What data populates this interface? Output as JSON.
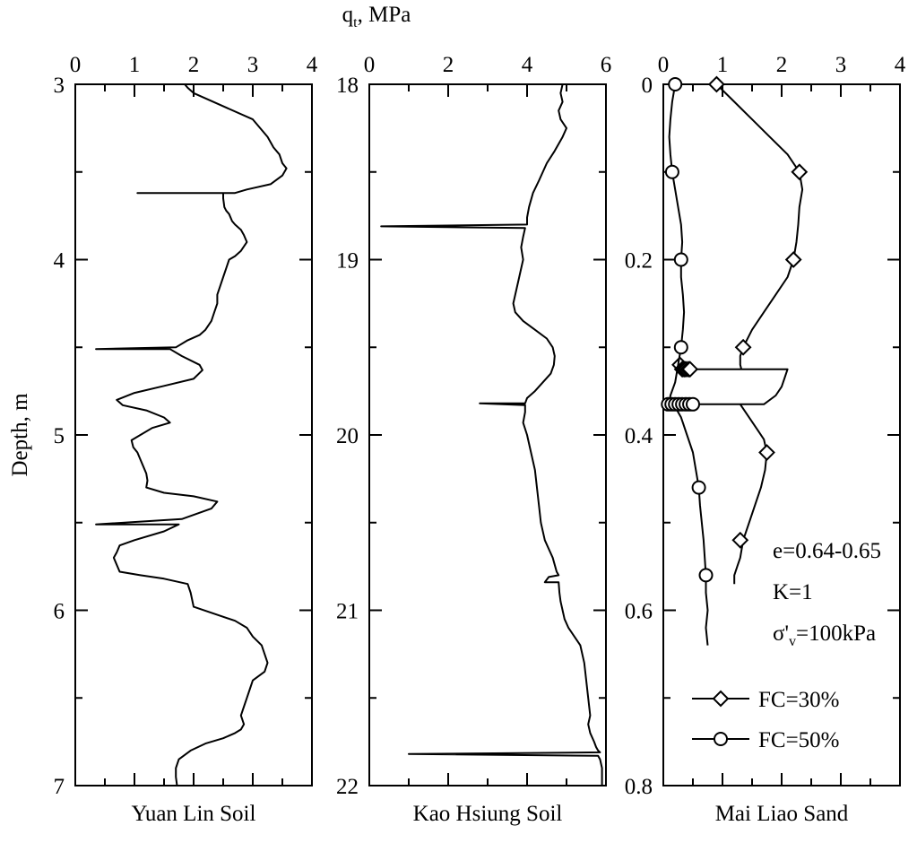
{
  "chart_data": {
    "type": "line",
    "top_label": {
      "main": "q",
      "sub": "t",
      "rest": ", MPa"
    },
    "ylabel": "Depth, m",
    "panels": [
      {
        "id": "yuan-lin",
        "title": "Yuan Lin Soil",
        "xlim": [
          0,
          4
        ],
        "ylim": [
          3,
          7
        ],
        "x_ticks": [
          "0",
          "1",
          "2",
          "3",
          "4"
        ],
        "y_ticks": [
          "3",
          "4",
          "5",
          "6",
          "7"
        ],
        "series": [
          {
            "x": [
              1.85,
              1.9,
              2.0,
              3.0,
              3.25,
              3.3,
              3.35,
              3.45,
              3.5,
              3.57,
              3.5,
              3.3,
              2.9,
              2.7,
              1.05,
              2.5,
              2.5,
              2.52,
              2.55,
              2.6,
              2.65,
              2.7,
              2.8,
              2.85,
              2.9,
              2.8,
              2.7,
              2.6,
              2.55,
              2.5,
              2.45,
              2.4,
              2.4,
              2.35,
              2.3,
              2.2,
              2.1,
              1.9,
              1.7,
              0.35,
              1.6,
              1.8,
              2.1,
              2.15,
              2.0,
              1.5,
              1.0,
              0.7,
              0.8,
              1.2,
              1.5,
              1.6,
              1.3,
              1.1,
              0.95,
              0.98,
              1.05,
              1.1,
              1.15,
              1.2,
              1.22,
              1.2,
              1.5,
              2.0,
              2.4,
              2.3,
              1.8,
              0.35,
              1.75,
              1.5,
              1.0,
              0.75,
              0.7,
              0.65,
              0.75,
              1.1,
              1.5,
              1.9,
              1.95,
              2.0,
              2.7,
              2.9,
              3.0,
              3.15,
              3.25,
              3.2,
              3.0,
              2.95,
              2.9,
              2.85,
              2.8,
              2.85,
              2.8,
              2.7,
              2.5,
              2.2,
              1.95,
              1.75,
              1.7,
              1.7,
              1.72
            ],
            "y": [
              3.0,
              3.02,
              3.05,
              3.2,
              3.3,
              3.33,
              3.36,
              3.4,
              3.45,
              3.48,
              3.52,
              3.57,
              3.6,
              3.62,
              3.62,
              3.62,
              3.65,
              3.7,
              3.72,
              3.74,
              3.78,
              3.8,
              3.83,
              3.86,
              3.9,
              3.95,
              3.98,
              4.0,
              4.05,
              4.1,
              4.15,
              4.2,
              4.25,
              4.3,
              4.35,
              4.4,
              4.43,
              4.46,
              4.5,
              4.51,
              4.51,
              4.55,
              4.6,
              4.63,
              4.68,
              4.72,
              4.76,
              4.8,
              4.83,
              4.86,
              4.9,
              4.93,
              4.96,
              5.0,
              5.03,
              5.07,
              5.1,
              5.14,
              5.18,
              5.22,
              5.26,
              5.3,
              5.33,
              5.35,
              5.38,
              5.42,
              5.48,
              5.51,
              5.51,
              5.55,
              5.6,
              5.63,
              5.67,
              5.7,
              5.78,
              5.8,
              5.82,
              5.85,
              5.9,
              5.98,
              6.06,
              6.1,
              6.15,
              6.2,
              6.3,
              6.35,
              6.4,
              6.45,
              6.5,
              6.55,
              6.6,
              6.65,
              6.68,
              6.7,
              6.73,
              6.76,
              6.8,
              6.85,
              6.9,
              6.95,
              7.0
            ]
          }
        ]
      },
      {
        "id": "kao-hsiung",
        "title": "Kao Hsiung Soil",
        "xlim": [
          0,
          6
        ],
        "ylim": [
          18,
          22
        ],
        "x_ticks": [
          "0",
          "2",
          "4",
          "6"
        ],
        "y_ticks": [
          "18",
          "19",
          "20",
          "21",
          "22"
        ],
        "series": [
          {
            "x": [
              4.9,
              4.85,
              4.9,
              4.8,
              4.85,
              5.0,
              4.9,
              4.7,
              4.5,
              4.3,
              4.15,
              4.05,
              4.0,
              4.0,
              0.3,
              3.95,
              3.9,
              3.85,
              3.9,
              3.8,
              3.7,
              3.65,
              3.7,
              3.9,
              4.2,
              4.5,
              4.65,
              4.7,
              4.68,
              4.6,
              4.4,
              4.2,
              4.0,
              3.95,
              2.8,
              3.95,
              3.95,
              3.9,
              4.0,
              4.1,
              4.2,
              4.25,
              4.3,
              4.35,
              4.45,
              4.55,
              4.65,
              4.7,
              4.75,
              4.8,
              4.55,
              4.45,
              4.8,
              4.82,
              4.85,
              4.9,
              4.95,
              5.05,
              5.2,
              5.35,
              5.45,
              5.5,
              5.55,
              5.6,
              5.55,
              5.6,
              5.7,
              5.75,
              5.8,
              5.85,
              1.0,
              5.8,
              5.85,
              5.9,
              5.9
            ],
            "y": [
              18.0,
              18.05,
              18.1,
              18.15,
              18.2,
              18.25,
              18.3,
              18.38,
              18.45,
              18.55,
              18.62,
              18.7,
              18.76,
              18.8,
              18.81,
              18.82,
              18.87,
              18.93,
              19.0,
              19.1,
              19.2,
              19.25,
              19.3,
              19.35,
              19.4,
              19.45,
              19.5,
              19.55,
              19.6,
              19.65,
              19.7,
              19.75,
              19.79,
              19.82,
              19.82,
              19.83,
              19.87,
              19.93,
              20.0,
              20.1,
              20.2,
              20.3,
              20.4,
              20.5,
              20.6,
              20.65,
              20.7,
              20.74,
              20.78,
              20.8,
              20.81,
              20.84,
              20.84,
              20.9,
              20.95,
              21.0,
              21.05,
              21.1,
              21.15,
              21.2,
              21.3,
              21.4,
              21.5,
              21.6,
              21.65,
              21.7,
              21.75,
              21.78,
              21.8,
              21.81,
              21.82,
              21.83,
              21.85,
              21.9,
              22.0
            ]
          }
        ]
      },
      {
        "id": "mai-liao",
        "title": "Mai Liao Sand",
        "xlim": [
          0,
          4
        ],
        "ylim": [
          0,
          0.8
        ],
        "x_ticks": [
          "0",
          "1",
          "2",
          "3",
          "4"
        ],
        "y_ticks": [
          "0",
          "0.2",
          "0.4",
          "0.6",
          "0.8"
        ],
        "series": [
          {
            "name": "FC=30%",
            "marker": "diamond",
            "x": [
              0.9,
              1.2,
              1.5,
              1.8,
              2.1,
              2.3,
              2.35,
              2.3,
              2.28,
              2.25,
              2.2,
              2.1,
              1.9,
              1.7,
              1.5,
              1.35,
              1.3,
              1.3,
              1.32,
              1.35,
              0.3,
              0.35,
              0.4,
              2.1,
              2.05,
              2.0,
              1.9,
              1.7,
              0.5,
              0.55,
              0.6,
              1.3,
              1.4,
              1.5,
              1.6,
              1.7,
              1.75,
              1.72,
              1.65,
              1.55,
              1.45,
              1.35,
              1.3,
              1.25,
              1.2,
              1.2
            ],
            "y": [
              0.0,
              0.02,
              0.04,
              0.06,
              0.08,
              0.1,
              0.12,
              0.14,
              0.16,
              0.18,
              0.2,
              0.22,
              0.24,
              0.26,
              0.28,
              0.3,
              0.31,
              0.32,
              0.325,
              0.325,
              0.325,
              0.325,
              0.325,
              0.325,
              0.335,
              0.345,
              0.355,
              0.365,
              0.365,
              0.365,
              0.365,
              0.365,
              0.375,
              0.385,
              0.395,
              0.405,
              0.42,
              0.44,
              0.46,
              0.48,
              0.5,
              0.52,
              0.54,
              0.55,
              0.56,
              0.57
            ],
            "marker_y": [
              0.0,
              0.1,
              0.2,
              0.3,
              0.32,
              0.325,
              0.325,
              0.325,
              0.325,
              0.325,
              0.42,
              0.52
            ],
            "marker_x": [
              0.9,
              2.3,
              2.2,
              1.35,
              0.28,
              0.32,
              0.35,
              0.38,
              0.42,
              0.45,
              1.75,
              1.3
            ]
          },
          {
            "name": "FC=50%",
            "marker": "circle",
            "x": [
              0.2,
              0.15,
              0.12,
              0.1,
              0.12,
              0.15,
              0.2,
              0.25,
              0.3,
              0.32,
              0.3,
              0.3,
              0.33,
              0.35,
              0.33,
              0.3,
              0.25,
              0.2,
              0.12,
              0.1,
              0.12,
              0.2,
              0.3,
              0.4,
              0.5,
              0.55,
              0.6,
              0.62,
              0.65,
              0.68,
              0.7,
              0.72,
              0.72,
              0.75,
              0.72,
              0.75
            ],
            "y": [
              0.0,
              0.02,
              0.04,
              0.06,
              0.08,
              0.1,
              0.12,
              0.14,
              0.16,
              0.18,
              0.2,
              0.22,
              0.24,
              0.26,
              0.28,
              0.3,
              0.32,
              0.34,
              0.355,
              0.365,
              0.366,
              0.368,
              0.38,
              0.4,
              0.42,
              0.44,
              0.46,
              0.48,
              0.5,
              0.52,
              0.54,
              0.56,
              0.58,
              0.6,
              0.62,
              0.64
            ],
            "marker_y": [
              0.0,
              0.1,
              0.2,
              0.3,
              0.365,
              0.365,
              0.365,
              0.365,
              0.365,
              0.365,
              0.365,
              0.365,
              0.46,
              0.56
            ],
            "marker_x": [
              0.2,
              0.15,
              0.3,
              0.3,
              0.08,
              0.14,
              0.2,
              0.26,
              0.32,
              0.38,
              0.44,
              0.5,
              0.6,
              0.72
            ]
          }
        ],
        "annotations": [
          "e=0.64-0.65",
          "K=1",
          "=100kPa"
        ],
        "sigma_label": {
          "main": "σ'",
          "sub": "v",
          "rest": "=100kPa"
        }
      }
    ]
  }
}
